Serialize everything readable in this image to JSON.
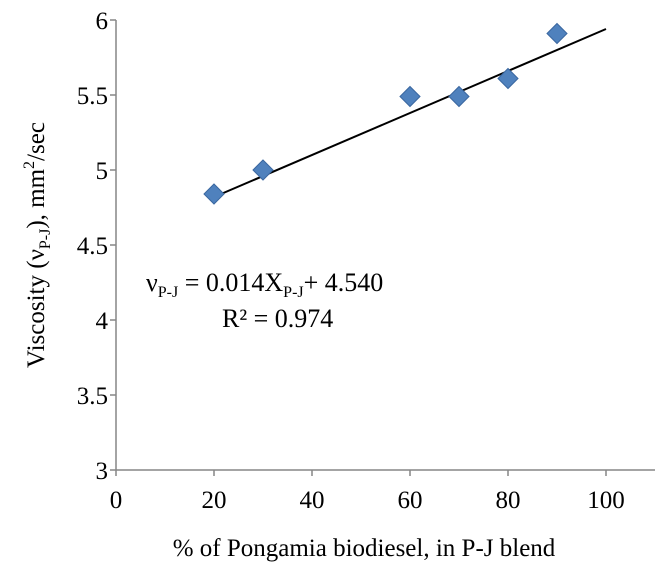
{
  "chart_data": {
    "type": "scatter",
    "xlabel": "% of Pongamia biodiesel, in P-J blend",
    "ylabel": {
      "prefix": "Viscosity (ν",
      "subscript": "P-J",
      "middle": "), mm",
      "superscript": "2",
      "suffix": "/sec"
    },
    "xlim": [
      0,
      110
    ],
    "ylim": [
      3,
      6
    ],
    "x_ticks": [
      "0",
      "20",
      "40",
      "60",
      "80",
      "100"
    ],
    "x_tick_values": [
      0,
      20,
      40,
      60,
      80,
      100
    ],
    "y_ticks": [
      "3",
      "3.5",
      "4",
      "4.5",
      "5",
      "5.5",
      "6"
    ],
    "y_tick_values": [
      3,
      3.5,
      4,
      4.5,
      5,
      5.5,
      6
    ],
    "grid": false,
    "series": [
      {
        "marker": "diamond",
        "color": "#4F81BD",
        "points": [
          {
            "x": 20,
            "y": 4.84
          },
          {
            "x": 30,
            "y": 5.0
          },
          {
            "x": 60,
            "y": 5.49
          },
          {
            "x": 70,
            "y": 5.49
          },
          {
            "x": 80,
            "y": 5.61
          },
          {
            "x": 90,
            "y": 5.91
          }
        ]
      }
    ],
    "trendline": {
      "type": "linear",
      "slope": 0.014,
      "intercept": 4.54,
      "x_start": 20,
      "x_end": 100,
      "color": "#000000"
    },
    "annotation": {
      "eq_nu": "ν",
      "eq_nu_sub": "P-J",
      "eq_mid": " = 0.014X",
      "eq_x_sub": "P-J",
      "eq_end": "+ 4.540",
      "r2": "R² = 0.974"
    }
  }
}
